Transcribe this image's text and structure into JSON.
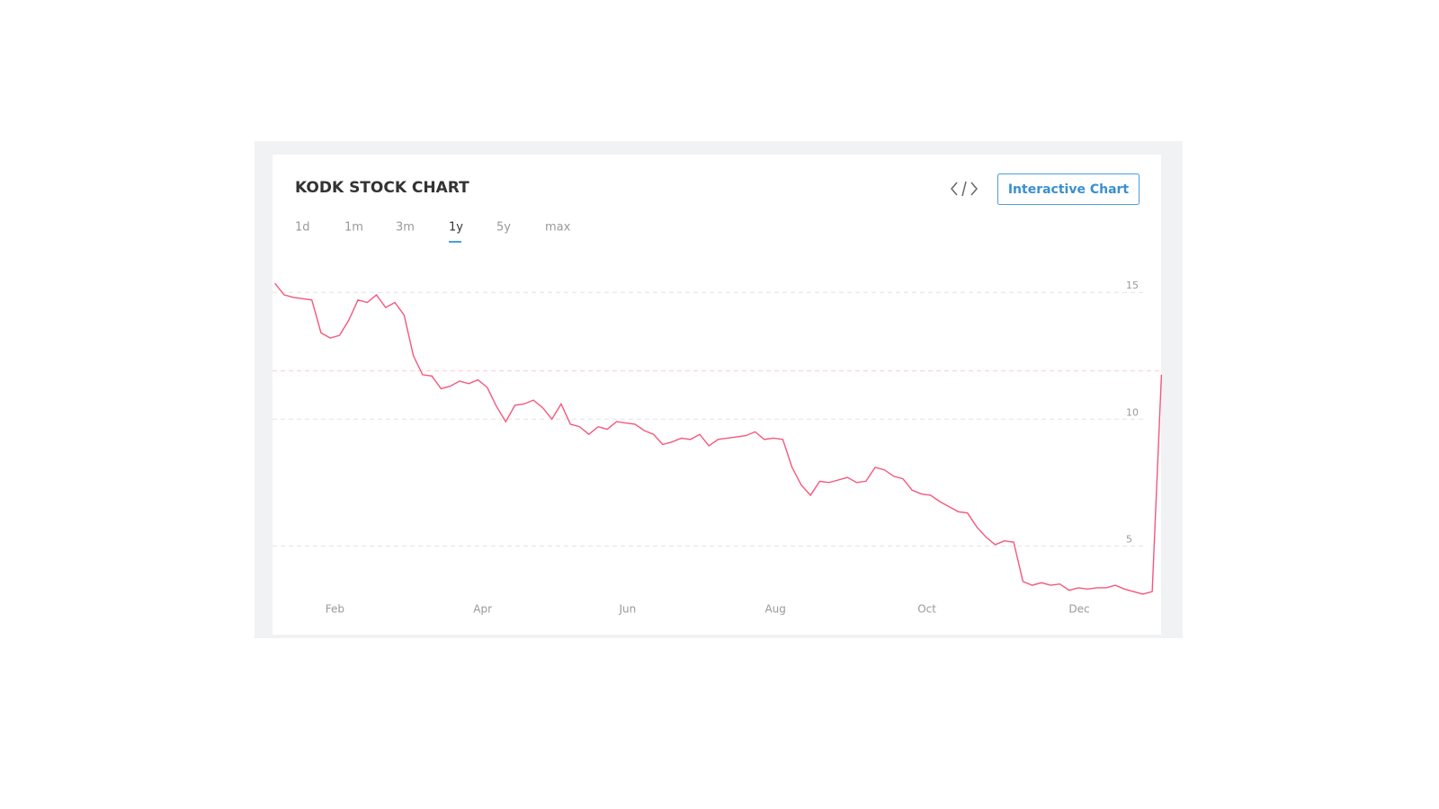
{
  "header": {
    "title": "KODK STOCK CHART",
    "button": "Interactive Chart"
  },
  "tabs": {
    "items": [
      "1d",
      "1m",
      "3m",
      "1y",
      "5y",
      "max"
    ],
    "active_index": 3
  },
  "chart_data": {
    "type": "line",
    "color": "#f5577c",
    "values": [
      15.36,
      14.9,
      14.8,
      14.75,
      14.7,
      13.4,
      13.2,
      13.3,
      13.9,
      14.7,
      14.6,
      14.9,
      14.4,
      14.6,
      14.1,
      12.5,
      11.75,
      11.7,
      11.2,
      11.3,
      11.5,
      11.4,
      11.55,
      11.25,
      10.5,
      9.9,
      10.55,
      10.6,
      10.75,
      10.45,
      10.0,
      10.6,
      9.8,
      9.7,
      9.4,
      9.7,
      9.6,
      9.9,
      9.85,
      9.8,
      9.55,
      9.4,
      9.0,
      9.1,
      9.25,
      9.2,
      9.4,
      8.95,
      9.2,
      9.25,
      9.3,
      9.35,
      9.5,
      9.2,
      9.25,
      9.2,
      8.1,
      7.4,
      7.0,
      7.55,
      7.5,
      7.6,
      7.7,
      7.5,
      7.55,
      8.1,
      8.0,
      7.75,
      7.65,
      7.2,
      7.05,
      7.0,
      6.75,
      6.55,
      6.35,
      6.3,
      5.75,
      5.35,
      5.05,
      5.2,
      5.15,
      3.6,
      3.45,
      3.55,
      3.45,
      3.5,
      3.25,
      3.35,
      3.3,
      3.35,
      3.35,
      3.45,
      3.3,
      3.2,
      3.1,
      3.2,
      11.75
    ],
    "xlim": [
      0,
      96
    ],
    "xticks": [
      {
        "value": 6.5,
        "label": "Feb"
      },
      {
        "value": 22.5,
        "label": "Apr"
      },
      {
        "value": 38.2,
        "label": "Jun"
      },
      {
        "value": 54.2,
        "label": "Aug"
      },
      {
        "value": 70.6,
        "label": "Oct"
      },
      {
        "value": 87.1,
        "label": "Dec"
      }
    ],
    "ylim": [
      2,
      16
    ],
    "yticks": [
      5,
      10,
      15
    ],
    "grid": true,
    "reference_line": 11.9,
    "reference_color": "#ffc9d3"
  }
}
